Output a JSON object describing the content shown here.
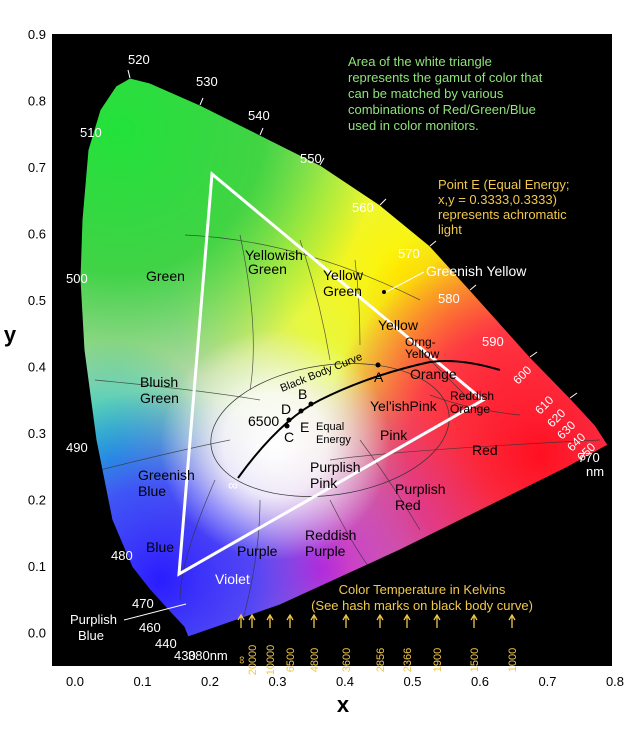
{
  "axes": {
    "x_label": "x",
    "y_label": "y",
    "x_ticks": [
      "0.0",
      "0.1",
      "0.2",
      "0.3",
      "0.4",
      "0.5",
      "0.6",
      "0.7",
      "0.8"
    ],
    "y_ticks": [
      "0.9",
      "0.8",
      "0.7",
      "0.6",
      "0.5",
      "0.4",
      "0.3",
      "0.2",
      "0.1",
      "0.0"
    ]
  },
  "wavelength_labels": [
    "520",
    "530",
    "540",
    "550",
    "560",
    "570",
    "580",
    "590",
    "600",
    "610",
    "620",
    "630",
    "640",
    "650",
    "770",
    "nm",
    "510",
    "500",
    "490",
    "480",
    "470",
    "460",
    "440",
    "430",
    "380nm"
  ],
  "regions": {
    "green": "Green",
    "yellowish_green_1": "Yellowish",
    "yellowish_green_2": "Green",
    "yellow_green_1": "Yellow",
    "yellow_green_2": "Green",
    "greenish_yellow": "Greenish Yellow",
    "yellow": "Yellow",
    "orng_yellow_1": "Orng-",
    "orng_yellow_2": "Yellow",
    "orange": "Orange",
    "reddish_orange_1": "Reddish",
    "reddish_orange_2": "Orange",
    "bluish_green_1": "Bluish",
    "bluish_green_2": "Green",
    "yelish_pink": "Yel'ishPink",
    "pink": "Pink",
    "red": "Red",
    "greenish_blue_1": "Greenish",
    "greenish_blue_2": "Blue",
    "purplish_pink_1": "Purplish",
    "purplish_pink_2": "Pink",
    "purplish_red_1": "Purplish",
    "purplish_red_2": "Red",
    "blue": "Blue",
    "purple": "Purple",
    "reddish_purple_1": "Reddish",
    "reddish_purple_2": "Purple",
    "violet": "Violet",
    "purplish_blue_1": "Purplish",
    "purplish_blue_2": "Blue"
  },
  "points": {
    "A": "A",
    "B": "B",
    "C": "C",
    "D": "D",
    "E": "E",
    "equal_1": "Equal",
    "equal_2": "Energy",
    "t6500": "6500",
    "infinity": "∞",
    "black_body_curve": "Black Body Curve"
  },
  "notes": {
    "gamut": [
      "Area of the white triangle",
      "represents the gamut of color that",
      "can be matched by various",
      "combinations of Red/Green/Blue",
      "used in color monitors."
    ],
    "point_e": [
      "Point E (Equal Energy;",
      "x,y = 0.3333,0.3333)",
      "represents achromatic",
      "light"
    ],
    "color_temp": [
      "Color Temperature in Kelvins",
      "(See hash marks on black body curve)"
    ]
  },
  "temperatures": [
    "∞",
    "20000",
    "10000",
    "6500",
    "4800",
    "3600",
    "2856",
    "2366",
    "1900",
    "1500",
    "1000"
  ],
  "colors": {
    "note_green": "#8fe37a",
    "note_yellow": "#f2c84b",
    "background": "#000000",
    "triangle": "#ffffff"
  }
}
